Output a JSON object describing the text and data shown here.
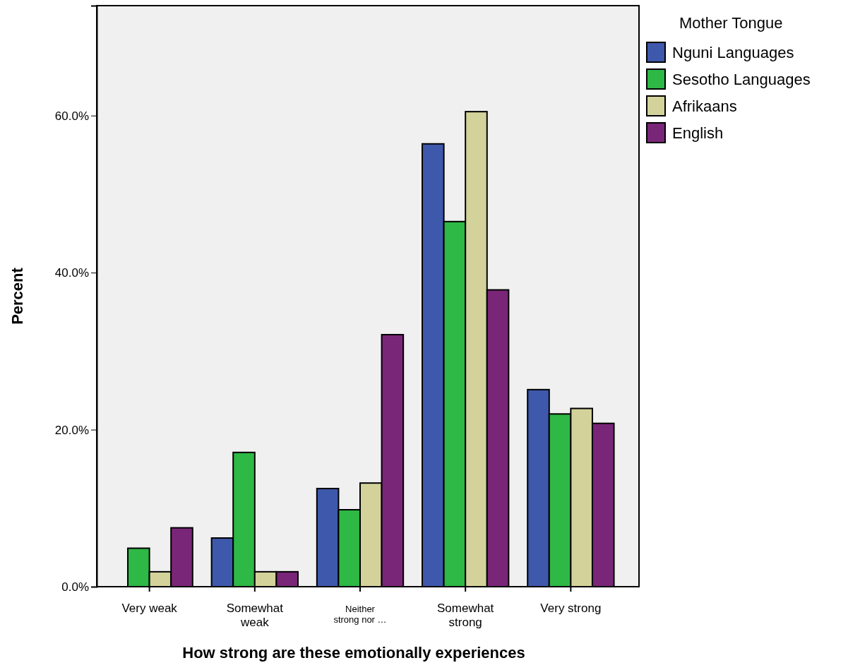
{
  "chart_data": {
    "type": "bar",
    "xlabel": "How strong are these emotionally experiences",
    "ylabel": "Percent",
    "legend_title": "Mother Tongue",
    "legend": "top right",
    "categories": [
      "Very weak",
      "Somewhat weak",
      "Neither strong nor …",
      "Somewhat strong",
      "Very strong"
    ],
    "series": [
      {
        "name": "Nguni Languages",
        "color": "#3e58ac",
        "values": [
          0,
          6.2,
          12.5,
          56.4,
          25.1
        ]
      },
      {
        "name": "Sesotho Languages",
        "color": "#2eb845",
        "values": [
          4.9,
          17.1,
          9.8,
          46.5,
          22.0
        ]
      },
      {
        "name": "Afrikaans",
        "color": "#d3d29a",
        "values": [
          1.9,
          1.9,
          13.2,
          60.5,
          22.7
        ]
      },
      {
        "name": "English",
        "color": "#7a2678",
        "values": [
          7.5,
          1.9,
          32.1,
          37.8,
          20.8
        ]
      }
    ],
    "ylim": [
      0,
      74
    ],
    "yticks": [
      {
        "value": 0,
        "label": "0.0%"
      },
      {
        "value": 20,
        "label": "20.0%"
      },
      {
        "value": 40,
        "label": "40.0%"
      },
      {
        "value": 60,
        "label": "60.0%"
      }
    ],
    "grid": false
  }
}
